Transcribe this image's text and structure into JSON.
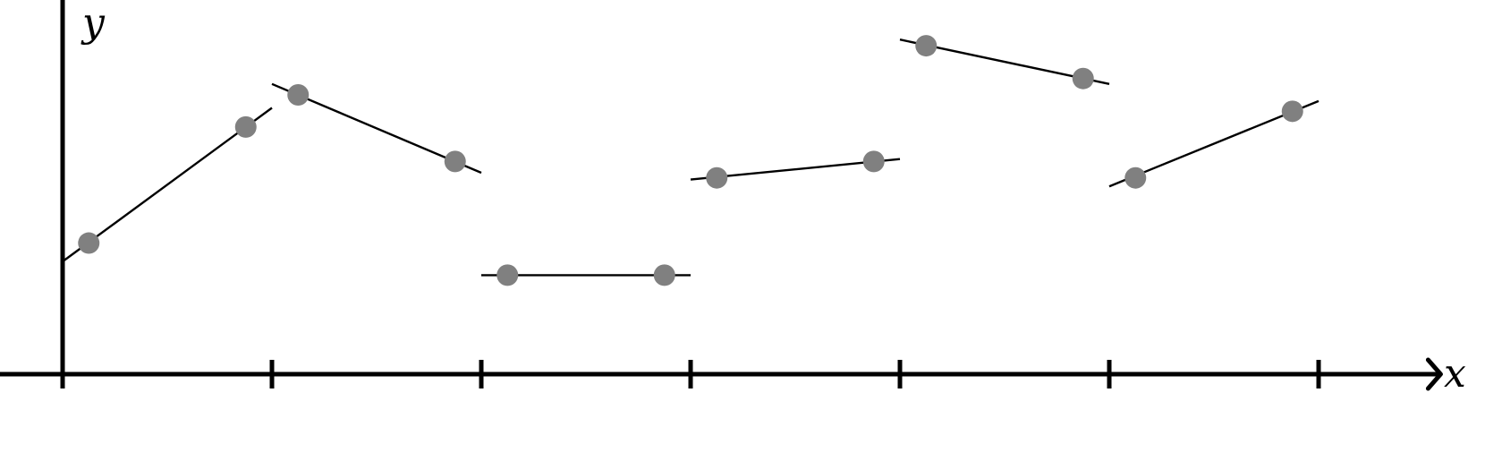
{
  "chart_data": {
    "type": "line",
    "axis_labels": {
      "x": "x",
      "y": "y"
    },
    "xlim": [
      -0.3,
      6.6
    ],
    "ylim": [
      0,
      1.22
    ],
    "x_ticks": [
      0,
      1,
      2,
      3,
      4,
      5,
      6
    ],
    "tick_labels_shown": false,
    "grid": false,
    "segments": [
      {
        "x": [
          0,
          1
        ],
        "y": [
          0.33,
          0.78
        ],
        "points": [
          [
            0.125,
            0.384
          ],
          [
            0.875,
            0.724
          ]
        ]
      },
      {
        "x": [
          1,
          2
        ],
        "y": [
          0.85,
          0.59
        ],
        "points": [
          [
            1.125,
            0.818
          ],
          [
            1.875,
            0.623
          ]
        ]
      },
      {
        "x": [
          2,
          3
        ],
        "y": [
          0.29,
          0.29
        ],
        "points": [
          [
            2.125,
            0.29
          ],
          [
            2.875,
            0.29
          ]
        ]
      },
      {
        "x": [
          3,
          4
        ],
        "y": [
          0.57,
          0.63
        ],
        "points": [
          [
            3.125,
            0.575
          ],
          [
            3.875,
            0.623
          ]
        ]
      },
      {
        "x": [
          4,
          5
        ],
        "y": [
          0.98,
          0.85
        ],
        "points": [
          [
            4.125,
            0.962
          ],
          [
            4.875,
            0.866
          ]
        ]
      },
      {
        "x": [
          5,
          6
        ],
        "y": [
          0.55,
          0.8
        ],
        "points": [
          [
            5.125,
            0.575
          ],
          [
            5.875,
            0.77
          ]
        ]
      }
    ],
    "colors": {
      "axis": "#000000",
      "line": "#000000",
      "point": "#808080"
    }
  }
}
